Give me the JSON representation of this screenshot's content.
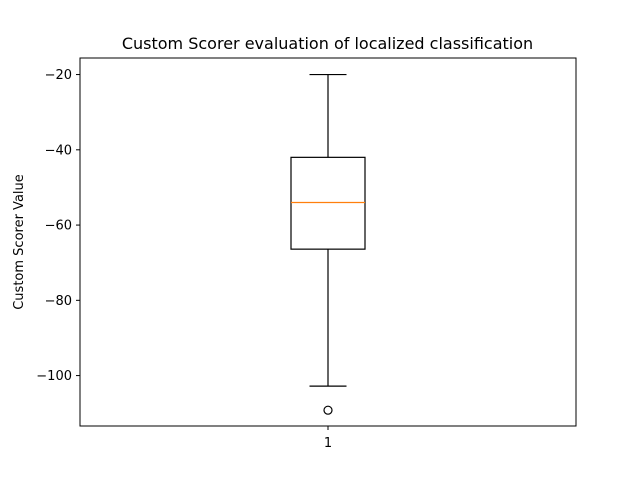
{
  "chart_data": {
    "type": "box",
    "title": "Custom Scorer evaluation of localized classification",
    "xlabel": "",
    "ylabel": "Custom Scorer Value",
    "categories": [
      "1"
    ],
    "ylim": [
      -113.4,
      -15.6
    ],
    "yticks": [
      -20,
      -40,
      -60,
      -80,
      -100
    ],
    "ytick_labels": [
      "−20",
      "−40",
      "−60",
      "−80",
      "−100"
    ],
    "boxes": [
      {
        "category": "1",
        "whisker_high": -20,
        "q3": -42,
        "median": -54,
        "q1": -66.4,
        "whisker_low": -102.8,
        "outliers": [
          -109.2
        ]
      }
    ],
    "grid": false,
    "colors": {
      "box": "#000000",
      "median": "#ff7f0e"
    }
  }
}
